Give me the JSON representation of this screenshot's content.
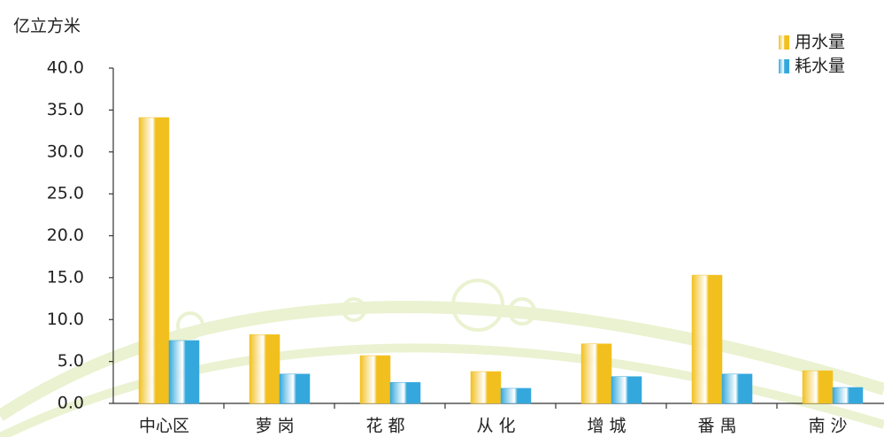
{
  "chart_data": {
    "type": "bar",
    "y_label": "亿立方米",
    "categories": [
      "中心区",
      "萝 岗",
      "花 都",
      "从 化",
      "增 城",
      "番 禺",
      "南 沙"
    ],
    "series": [
      {
        "name": "用水量",
        "color": "#f2c01e",
        "values": [
          34.1,
          8.2,
          5.7,
          3.8,
          7.1,
          15.3,
          3.9
        ]
      },
      {
        "name": "耗水量",
        "color": "#34a8dc",
        "values": [
          7.5,
          3.5,
          2.5,
          1.8,
          3.2,
          3.5,
          1.9
        ]
      }
    ],
    "ylim": [
      0,
      40
    ],
    "yticks": [
      {
        "value": 0,
        "label": "0.0"
      },
      {
        "value": 5,
        "label": "5.0"
      },
      {
        "value": 10,
        "label": "10.0"
      },
      {
        "value": 15,
        "label": "15.0"
      },
      {
        "value": 20,
        "label": "20.0"
      },
      {
        "value": 25,
        "label": "25.0"
      },
      {
        "value": 30,
        "label": "30.0"
      },
      {
        "value": 35,
        "label": "35.0"
      },
      {
        "value": 40,
        "label": "40.0"
      }
    ],
    "legend": "top-right"
  }
}
